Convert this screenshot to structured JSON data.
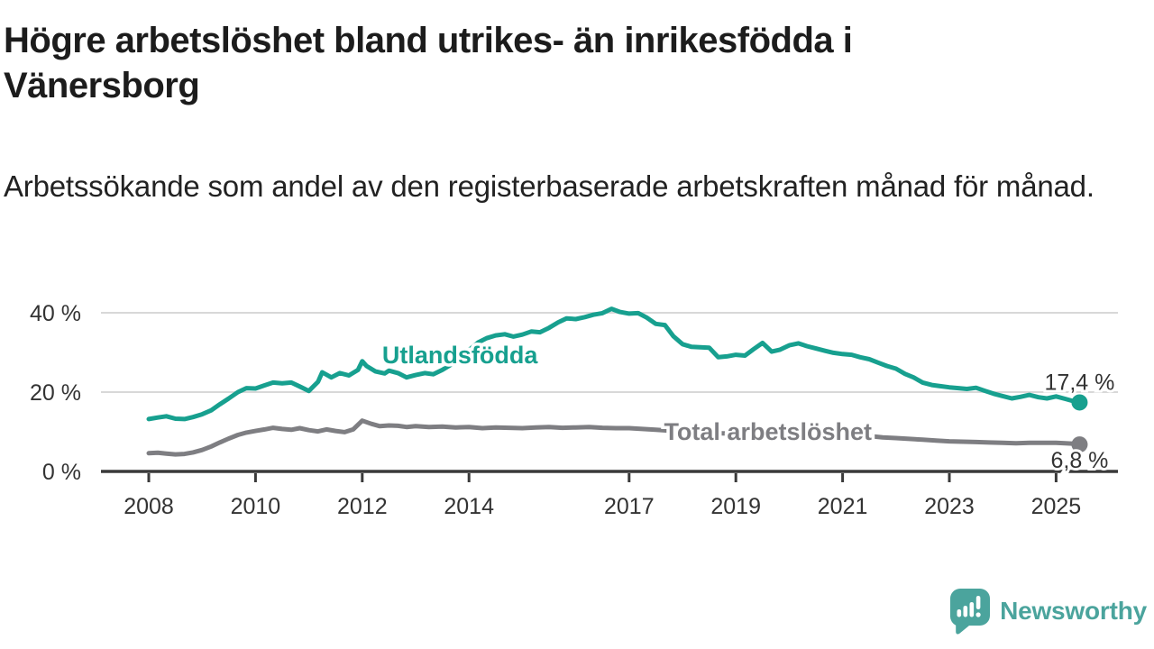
{
  "header": {
    "title": "Högre arbetslöshet bland utrikes- än inrikesfödda i Vänersborg",
    "subtitle": "Arbetssökande som andel av den registerbaserade arbetskraften månad för månad."
  },
  "chart_data": {
    "type": "line",
    "title": "Högre arbetslöshet bland utrikes- än inrikesfödda i Vänersborg",
    "xlabel": "",
    "ylabel": "",
    "y_unit": "%",
    "x_unit": "year",
    "xlim": [
      2007.5,
      2026.1
    ],
    "ylim": [
      0,
      45
    ],
    "grid": "horizontal",
    "legend_position": "inline-labels",
    "x_ticks": [
      "2008",
      "2010",
      "2012",
      "2014",
      "2017",
      "2019",
      "2021",
      "2023",
      "2025"
    ],
    "x_tick_values": [
      2008,
      2010,
      2012,
      2014,
      2017,
      2019,
      2021,
      2023,
      2025
    ],
    "y_ticks": [
      {
        "value": 0,
        "label": "0 %"
      },
      {
        "value": 20,
        "label": "20 %"
      },
      {
        "value": 40,
        "label": "40 %"
      }
    ],
    "series": [
      {
        "name": "Utlandsfödda",
        "color": "#17A08F",
        "end_label": "17,4 %",
        "end_value": 17.4,
        "label_anchor": {
          "x": 2013.83,
          "y": 29.3
        },
        "points": [
          [
            2008.0,
            13.2
          ],
          [
            2008.17,
            13.6
          ],
          [
            2008.33,
            13.9
          ],
          [
            2008.5,
            13.3
          ],
          [
            2008.67,
            13.2
          ],
          [
            2008.83,
            13.7
          ],
          [
            2009.0,
            14.4
          ],
          [
            2009.17,
            15.4
          ],
          [
            2009.33,
            16.9
          ],
          [
            2009.5,
            18.4
          ],
          [
            2009.67,
            20.0
          ],
          [
            2009.83,
            21.0
          ],
          [
            2010.0,
            20.9
          ],
          [
            2010.17,
            21.7
          ],
          [
            2010.33,
            22.4
          ],
          [
            2010.5,
            22.2
          ],
          [
            2010.67,
            22.4
          ],
          [
            2010.83,
            21.4
          ],
          [
            2011.0,
            20.3
          ],
          [
            2011.17,
            22.6
          ],
          [
            2011.25,
            25.0
          ],
          [
            2011.42,
            23.7
          ],
          [
            2011.58,
            24.8
          ],
          [
            2011.75,
            24.2
          ],
          [
            2011.92,
            25.6
          ],
          [
            2012.0,
            27.8
          ],
          [
            2012.08,
            26.6
          ],
          [
            2012.25,
            25.2
          ],
          [
            2012.42,
            24.7
          ],
          [
            2012.5,
            25.4
          ],
          [
            2012.67,
            24.8
          ],
          [
            2012.83,
            23.7
          ],
          [
            2013.0,
            24.3
          ],
          [
            2013.17,
            24.8
          ],
          [
            2013.33,
            24.5
          ],
          [
            2013.5,
            25.6
          ],
          [
            2013.67,
            27.0
          ],
          [
            2013.83,
            28.6
          ],
          [
            2014.0,
            30.6
          ],
          [
            2014.17,
            32.5
          ],
          [
            2014.33,
            33.6
          ],
          [
            2014.5,
            34.3
          ],
          [
            2014.67,
            34.6
          ],
          [
            2014.83,
            34.0
          ],
          [
            2015.0,
            34.5
          ],
          [
            2015.17,
            35.3
          ],
          [
            2015.33,
            35.1
          ],
          [
            2015.5,
            36.2
          ],
          [
            2015.67,
            37.6
          ],
          [
            2015.83,
            38.6
          ],
          [
            2016.0,
            38.4
          ],
          [
            2016.17,
            38.9
          ],
          [
            2016.33,
            39.5
          ],
          [
            2016.5,
            39.9
          ],
          [
            2016.67,
            41.0
          ],
          [
            2016.83,
            40.2
          ],
          [
            2017.0,
            39.8
          ],
          [
            2017.17,
            39.9
          ],
          [
            2017.33,
            38.8
          ],
          [
            2017.5,
            37.2
          ],
          [
            2017.67,
            36.9
          ],
          [
            2017.83,
            34.1
          ],
          [
            2018.0,
            32.1
          ],
          [
            2018.17,
            31.4
          ],
          [
            2018.33,
            31.3
          ],
          [
            2018.5,
            31.2
          ],
          [
            2018.67,
            28.8
          ],
          [
            2018.83,
            29.0
          ],
          [
            2019.0,
            29.4
          ],
          [
            2019.17,
            29.2
          ],
          [
            2019.33,
            30.8
          ],
          [
            2019.5,
            32.4
          ],
          [
            2019.67,
            30.2
          ],
          [
            2019.83,
            30.7
          ],
          [
            2020.0,
            31.8
          ],
          [
            2020.17,
            32.3
          ],
          [
            2020.33,
            31.6
          ],
          [
            2020.5,
            31.0
          ],
          [
            2020.67,
            30.4
          ],
          [
            2020.83,
            29.9
          ],
          [
            2021.0,
            29.6
          ],
          [
            2021.17,
            29.4
          ],
          [
            2021.33,
            28.8
          ],
          [
            2021.5,
            28.3
          ],
          [
            2021.67,
            27.4
          ],
          [
            2021.83,
            26.6
          ],
          [
            2022.0,
            25.9
          ],
          [
            2022.17,
            24.6
          ],
          [
            2022.33,
            23.7
          ],
          [
            2022.5,
            22.4
          ],
          [
            2022.67,
            21.8
          ],
          [
            2022.83,
            21.5
          ],
          [
            2023.0,
            21.2
          ],
          [
            2023.17,
            21.0
          ],
          [
            2023.33,
            20.8
          ],
          [
            2023.5,
            21.1
          ],
          [
            2023.67,
            20.3
          ],
          [
            2023.83,
            19.6
          ],
          [
            2024.0,
            19.0
          ],
          [
            2024.17,
            18.4
          ],
          [
            2024.33,
            18.8
          ],
          [
            2024.5,
            19.3
          ],
          [
            2024.67,
            18.7
          ],
          [
            2024.83,
            18.4
          ],
          [
            2025.0,
            18.9
          ],
          [
            2025.17,
            18.3
          ],
          [
            2025.33,
            17.7
          ],
          [
            2025.44,
            17.4
          ]
        ]
      },
      {
        "name": "Total arbetslöshet",
        "color": "#7E7E82",
        "end_label": "6,8 %",
        "end_value": 6.8,
        "label_anchor": {
          "x": 2019.6,
          "y": 10.0
        },
        "points": [
          [
            2008.0,
            4.6
          ],
          [
            2008.17,
            4.7
          ],
          [
            2008.33,
            4.5
          ],
          [
            2008.5,
            4.3
          ],
          [
            2008.67,
            4.4
          ],
          [
            2008.83,
            4.8
          ],
          [
            2009.0,
            5.4
          ],
          [
            2009.17,
            6.3
          ],
          [
            2009.33,
            7.3
          ],
          [
            2009.5,
            8.3
          ],
          [
            2009.67,
            9.2
          ],
          [
            2009.83,
            9.8
          ],
          [
            2010.0,
            10.2
          ],
          [
            2010.17,
            10.6
          ],
          [
            2010.33,
            11.0
          ],
          [
            2010.5,
            10.7
          ],
          [
            2010.67,
            10.5
          ],
          [
            2010.83,
            10.9
          ],
          [
            2011.0,
            10.4
          ],
          [
            2011.17,
            10.1
          ],
          [
            2011.33,
            10.6
          ],
          [
            2011.5,
            10.2
          ],
          [
            2011.67,
            9.9
          ],
          [
            2011.83,
            10.6
          ],
          [
            2012.0,
            12.8
          ],
          [
            2012.17,
            12.0
          ],
          [
            2012.33,
            11.4
          ],
          [
            2012.5,
            11.6
          ],
          [
            2012.67,
            11.5
          ],
          [
            2012.83,
            11.2
          ],
          [
            2013.0,
            11.4
          ],
          [
            2013.25,
            11.2
          ],
          [
            2013.5,
            11.3
          ],
          [
            2013.75,
            11.1
          ],
          [
            2014.0,
            11.2
          ],
          [
            2014.25,
            10.9
          ],
          [
            2014.5,
            11.1
          ],
          [
            2014.75,
            11.0
          ],
          [
            2015.0,
            10.9
          ],
          [
            2015.25,
            11.1
          ],
          [
            2015.5,
            11.2
          ],
          [
            2015.75,
            11.0
          ],
          [
            2016.0,
            11.1
          ],
          [
            2016.25,
            11.2
          ],
          [
            2016.5,
            11.0
          ],
          [
            2016.75,
            10.9
          ],
          [
            2017.0,
            10.9
          ],
          [
            2017.25,
            10.7
          ],
          [
            2017.5,
            10.5
          ],
          [
            2017.75,
            10.3
          ],
          [
            2018.0,
            10.1
          ],
          [
            2018.25,
            9.9
          ],
          [
            2018.5,
            9.7
          ],
          [
            2018.75,
            9.6
          ],
          [
            2019.0,
            9.5
          ],
          [
            2019.25,
            9.6
          ],
          [
            2019.5,
            9.5
          ],
          [
            2019.75,
            9.4
          ],
          [
            2020.0,
            9.6
          ],
          [
            2020.25,
            9.8
          ],
          [
            2020.5,
            9.7
          ],
          [
            2020.75,
            9.5
          ],
          [
            2021.0,
            9.3
          ],
          [
            2021.25,
            9.1
          ],
          [
            2021.5,
            8.9
          ],
          [
            2021.75,
            8.6
          ],
          [
            2022.0,
            8.4
          ],
          [
            2022.25,
            8.2
          ],
          [
            2022.5,
            8.0
          ],
          [
            2022.75,
            7.8
          ],
          [
            2023.0,
            7.6
          ],
          [
            2023.25,
            7.5
          ],
          [
            2023.5,
            7.4
          ],
          [
            2023.75,
            7.3
          ],
          [
            2024.0,
            7.2
          ],
          [
            2024.25,
            7.1
          ],
          [
            2024.5,
            7.2
          ],
          [
            2024.75,
            7.2
          ],
          [
            2025.0,
            7.2
          ],
          [
            2025.17,
            7.1
          ],
          [
            2025.33,
            7.0
          ],
          [
            2025.44,
            6.8
          ]
        ]
      }
    ]
  },
  "branding": {
    "name": "Newsworthy",
    "color": "#4BA49D",
    "icon": "speech-bubble-bar-chart-exclamation"
  },
  "colors": {
    "background": "#ffffff",
    "title_text": "#1c1c1c",
    "axis_text": "#333333",
    "axis_line": "#3a3a3a",
    "gridline": "#d8d8d8"
  }
}
